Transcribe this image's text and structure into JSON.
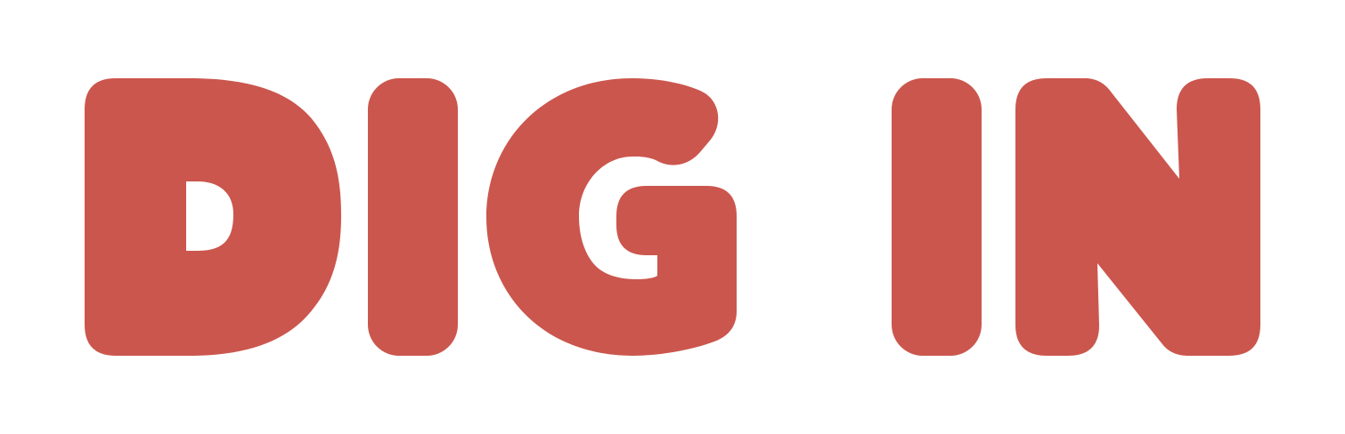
{
  "logo": {
    "text": "DIG IN",
    "color": "#CB564D",
    "background": "#FFFFFF"
  }
}
